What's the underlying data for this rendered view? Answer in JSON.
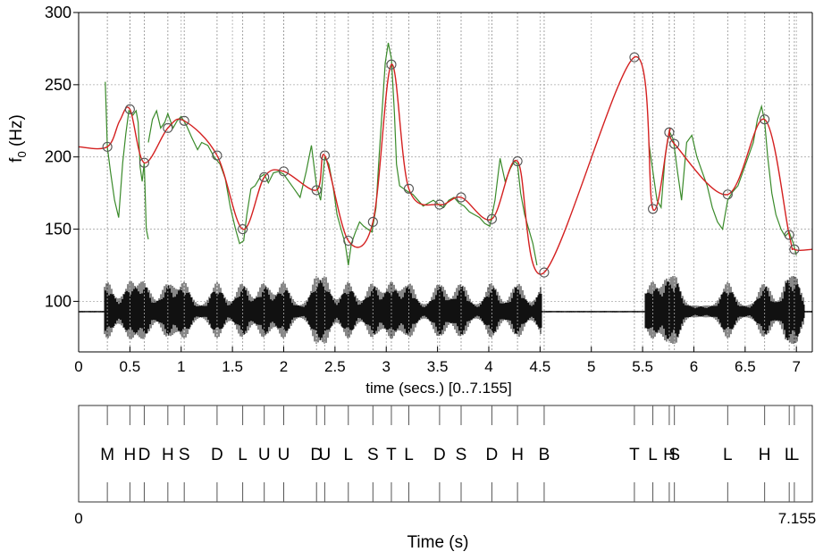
{
  "chart_data": {
    "type": "line",
    "ylabel": "f0 (Hz)",
    "ylim": [
      65,
      300
    ],
    "yticks": [
      "100",
      "150",
      "200",
      "250",
      "300"
    ],
    "xlim": [
      0,
      7.155
    ],
    "xticks": [
      "0",
      "0.5",
      "1",
      "1.5",
      "2",
      "2.5",
      "3",
      "3.5",
      "4",
      "4.5",
      "5",
      "5.5",
      "6",
      "6.5",
      "7"
    ],
    "time_axis_label": "time (secs.) [0..7.155]",
    "bottom_axis": {
      "label": "Time (s)",
      "start": "0",
      "end": "7.155"
    },
    "grid": true,
    "colors": {
      "f0_raw": "#3a8a2a",
      "f0_fit": "#d42020",
      "target": "#555555",
      "waveform": "#111111"
    },
    "series": [
      {
        "role": "target_points",
        "x": [
          0.28,
          0.5,
          0.64,
          0.87,
          1.03,
          1.35,
          1.6,
          1.81,
          2.0,
          2.32,
          2.4,
          2.63,
          2.87,
          3.05,
          3.22,
          3.52,
          3.73,
          4.03,
          4.28,
          4.54,
          5.42,
          5.6,
          5.76,
          5.81,
          6.33,
          6.69,
          6.93,
          6.98
        ],
        "y": [
          207,
          233,
          196,
          220,
          225,
          201,
          150,
          186,
          190,
          177,
          201,
          142,
          155,
          264,
          178,
          167,
          172,
          157,
          197,
          120,
          269,
          164,
          217,
          209,
          174,
          226,
          146,
          136
        ]
      },
      {
        "role": "fitted_curve",
        "x": [
          0.0,
          0.28,
          0.4,
          0.5,
          0.64,
          0.87,
          1.03,
          1.35,
          1.6,
          1.81,
          2.0,
          2.32,
          2.4,
          2.63,
          2.87,
          3.05,
          3.22,
          3.52,
          3.73,
          4.03,
          4.28,
          4.54,
          5.42,
          5.6,
          5.76,
          5.81,
          6.33,
          6.69,
          6.93,
          6.98,
          7.155
        ],
        "y": [
          207,
          207,
          225,
          233,
          196,
          220,
          225,
          201,
          150,
          186,
          190,
          177,
          201,
          142,
          155,
          264,
          178,
          167,
          172,
          157,
          197,
          120,
          269,
          164,
          217,
          209,
          174,
          226,
          146,
          136,
          136
        ]
      },
      {
        "role": "raw_f0",
        "segments": [
          {
            "x": [
              0.26,
              0.28,
              0.31,
              0.35,
              0.39,
              0.43,
              0.46,
              0.49,
              0.53,
              0.56,
              0.58,
              0.6,
              0.62,
              0.64,
              0.66,
              0.68
            ],
            "y": [
              252,
              207,
              190,
              170,
              158,
              196,
              216,
              232,
              229,
              232,
              224,
              193,
              183,
              196,
              150,
              143
            ]
          },
          {
            "x": [
              0.68,
              0.72,
              0.76,
              0.8,
              0.84,
              0.87,
              0.92,
              0.96,
              1.0,
              1.05,
              1.1,
              1.16,
              1.2,
              1.26,
              1.32,
              1.38,
              1.43,
              1.48,
              1.53,
              1.57,
              1.61,
              1.64,
              1.68,
              1.72,
              1.77,
              1.81,
              1.85,
              1.9,
              1.95,
              2.0,
              2.05,
              2.1,
              2.16,
              2.22,
              2.27,
              2.32,
              2.36,
              2.4,
              2.44,
              2.48,
              2.52,
              2.56,
              2.6,
              2.63,
              2.66,
              2.7,
              2.74,
              2.78,
              2.82,
              2.86,
              2.9,
              2.93,
              2.96,
              2.99,
              3.02,
              3.05,
              3.08,
              3.1,
              3.13,
              3.17,
              3.21,
              3.26,
              3.31,
              3.36,
              3.41,
              3.46,
              3.51,
              3.56,
              3.61,
              3.66,
              3.71,
              3.76,
              3.81,
              3.86,
              3.91,
              3.96,
              4.01,
              4.06,
              4.11,
              4.16,
              4.21,
              4.25,
              4.28,
              4.31,
              4.35,
              4.39,
              4.43,
              4.47
            ],
            "y": [
              210,
              226,
              232,
              220,
              224,
              230,
              220,
              225,
              228,
              222,
              214,
              205,
              210,
              208,
              200,
              195,
              185,
              165,
              150,
              140,
              142,
              160,
              178,
              180,
              186,
              188,
              182,
              189,
              190,
              188,
              183,
              178,
              172,
              190,
              208,
              180,
              170,
              200,
              195,
              180,
              160,
              150,
              140,
              125,
              140,
              148,
              155,
              152,
              150,
              148,
              165,
              200,
              232,
              265,
              279,
              268,
              230,
              195,
              180,
              178,
              176,
              174,
              170,
              166,
              168,
              170,
              167,
              165,
              170,
              172,
              168,
              166,
              162,
              160,
              158,
              154,
              152,
              170,
              199,
              183,
              192,
              197,
              195,
              175,
              160,
              150,
              140,
              125
            ]
          },
          {
            "x": [
              5.56,
              5.6,
              5.64,
              5.68,
              5.72,
              5.76,
              5.8,
              5.84,
              5.88,
              5.93,
              5.98,
              6.03,
              6.08,
              6.13,
              6.18,
              6.23,
              6.28,
              6.33,
              6.38,
              6.43,
              6.48,
              6.53,
              6.58,
              6.62,
              6.66,
              6.69,
              6.72,
              6.76,
              6.8,
              6.85,
              6.89,
              6.93,
              6.97,
              7.0
            ],
            "y": [
              210,
              190,
              170,
              165,
              200,
              218,
              212,
              190,
              170,
              210,
              215,
              200,
              190,
              180,
              165,
              155,
              150,
              170,
              176,
              180,
              190,
              200,
              210,
              226,
              235,
              225,
              200,
              175,
              160,
              150,
              145,
              148,
              140,
              132
            ]
          }
        ]
      }
    ],
    "tone_labels": [
      {
        "label": "M",
        "t": 0.28
      },
      {
        "label": "H",
        "t": 0.5
      },
      {
        "label": "D",
        "t": 0.64
      },
      {
        "label": "H",
        "t": 0.87
      },
      {
        "label": "S",
        "t": 1.03
      },
      {
        "label": "D",
        "t": 1.35
      },
      {
        "label": "L",
        "t": 1.6
      },
      {
        "label": "U",
        "t": 1.81
      },
      {
        "label": "U",
        "t": 2.0
      },
      {
        "label": "D",
        "t": 2.32
      },
      {
        "label": "U",
        "t": 2.4
      },
      {
        "label": "L",
        "t": 2.63
      },
      {
        "label": "S",
        "t": 2.87
      },
      {
        "label": "T",
        "t": 3.05
      },
      {
        "label": "L",
        "t": 3.22
      },
      {
        "label": "D",
        "t": 3.52
      },
      {
        "label": "S",
        "t": 3.73
      },
      {
        "label": "D",
        "t": 4.03
      },
      {
        "label": "H",
        "t": 4.28
      },
      {
        "label": "B",
        "t": 4.54
      },
      {
        "label": "T",
        "t": 5.42
      },
      {
        "label": "L",
        "t": 5.6
      },
      {
        "label": "H",
        "t": 5.76
      },
      {
        "label": "S",
        "t": 5.81
      },
      {
        "label": "L",
        "t": 6.33
      },
      {
        "label": "H",
        "t": 6.69
      },
      {
        "label": "L",
        "t": 6.93
      },
      {
        "label": "L",
        "t": 6.98
      }
    ]
  }
}
